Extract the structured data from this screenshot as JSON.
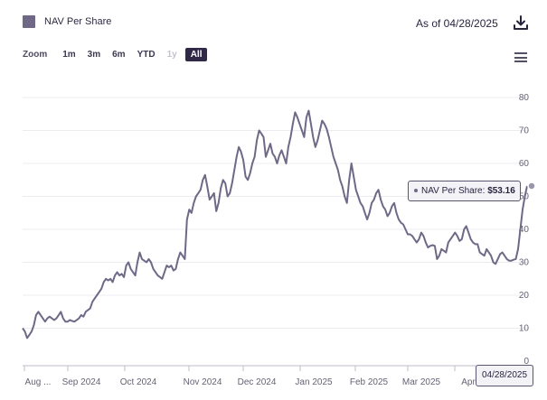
{
  "legend": {
    "label": "NAV Per Share",
    "color": "#6f6887"
  },
  "header": {
    "as_of": "As of 04/28/2025"
  },
  "icons": {
    "download": "download-icon",
    "menu": "hamburger-menu-icon"
  },
  "zoom": {
    "label": "Zoom",
    "options": [
      {
        "label": "1m",
        "state": "normal"
      },
      {
        "label": "3m",
        "state": "normal"
      },
      {
        "label": "6m",
        "state": "normal"
      },
      {
        "label": "YTD",
        "state": "normal"
      },
      {
        "label": "1y",
        "state": "disabled"
      },
      {
        "label": "All",
        "state": "active"
      }
    ]
  },
  "tooltip": {
    "series": "NAV Per Share:",
    "value": "$53.16"
  },
  "crosshair_label": "04/28/2025",
  "chart_data": {
    "type": "line",
    "series_name": "NAV Per Share",
    "color": "#6f6887",
    "ylim": [
      0,
      85
    ],
    "yticks": [
      "0",
      "10",
      "20",
      "30",
      "40",
      "50",
      "60",
      "70",
      "80"
    ],
    "xticks": [
      "Aug ...",
      "Sep 2024",
      "Oct 2024",
      "Nov 2024",
      "Dec 2024",
      "Jan 2025",
      "Feb 2025",
      "Mar 2025",
      "Apr"
    ],
    "values": [
      10,
      9,
      7,
      8,
      9,
      11,
      14,
      15,
      14,
      13,
      12,
      13,
      13.5,
      13,
      12.5,
      13,
      14,
      15,
      13,
      12,
      12,
      12.5,
      12.2,
      12,
      12.5,
      13,
      14,
      13.5,
      15,
      15.5,
      16,
      18,
      19,
      20,
      21,
      22,
      24,
      25,
      24.5,
      25,
      24,
      26,
      27,
      26,
      26.5,
      25.5,
      29,
      30,
      28,
      27,
      26,
      30,
      33,
      31,
      30.5,
      30,
      31,
      30,
      28,
      27,
      26,
      25.5,
      25,
      27,
      29,
      28.5,
      29,
      27.5,
      28,
      31,
      33,
      32,
      31,
      43,
      46,
      45,
      48,
      50,
      51,
      52,
      55,
      56.5,
      53,
      49,
      50,
      51,
      45.5,
      48,
      52.5,
      55,
      54,
      50,
      51,
      54,
      58,
      62,
      65,
      63.5,
      61,
      56,
      55,
      57,
      60,
      62,
      67,
      70,
      69,
      68,
      62,
      64,
      66,
      63,
      62,
      60,
      62.5,
      64,
      62,
      60,
      65,
      68,
      72,
      75.5,
      74,
      72,
      70,
      68,
      74,
      76,
      72,
      68,
      65,
      67,
      70,
      73,
      72,
      70.5,
      68,
      65,
      62,
      60,
      58,
      55,
      53,
      50,
      48,
      55,
      60,
      56,
      52,
      50,
      48,
      47,
      45,
      43,
      45,
      48,
      49,
      51,
      52,
      49,
      47,
      46,
      44,
      45,
      47,
      48,
      45,
      43,
      42,
      41.5,
      40,
      38.5,
      38.5,
      38,
      37,
      36,
      37,
      39,
      38,
      36,
      34.5,
      35,
      35.2,
      35,
      31,
      32,
      34,
      33.5,
      33,
      36,
      37,
      38,
      39,
      38,
      36.5,
      37,
      40,
      41,
      39,
      37,
      36,
      35.5,
      35.5,
      33,
      32.5,
      32,
      34,
      33,
      32,
      30,
      29.5,
      31,
      32.5,
      33,
      32,
      31,
      30.5,
      30.5,
      30.8,
      31,
      34,
      40,
      46,
      50,
      53.16
    ]
  }
}
